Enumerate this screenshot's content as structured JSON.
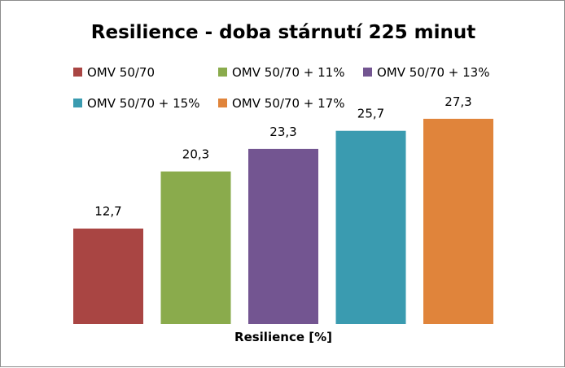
{
  "chart_data": {
    "type": "bar",
    "title": "Resilience - doba stárnutí 225 minut",
    "xlabel": "Resilience [%]",
    "ylabel": "",
    "ylim": [
      0,
      30
    ],
    "grid": false,
    "legend_position": "top",
    "categories": [
      "OMV 50/70",
      "OMV 50/70 + 11%",
      "OMV 50/70 + 13%",
      "OMV 50/70 + 15%",
      "OMV 50/70 + 17%"
    ],
    "values": [
      12.7,
      20.3,
      23.3,
      25.7,
      27.3
    ],
    "data_labels": [
      "12,7",
      "20,3",
      "23,3",
      "25,7",
      "27,3"
    ],
    "colors": [
      "#a94543",
      "#8aab4c",
      "#735591",
      "#3a9bb0",
      "#e0843b"
    ]
  }
}
